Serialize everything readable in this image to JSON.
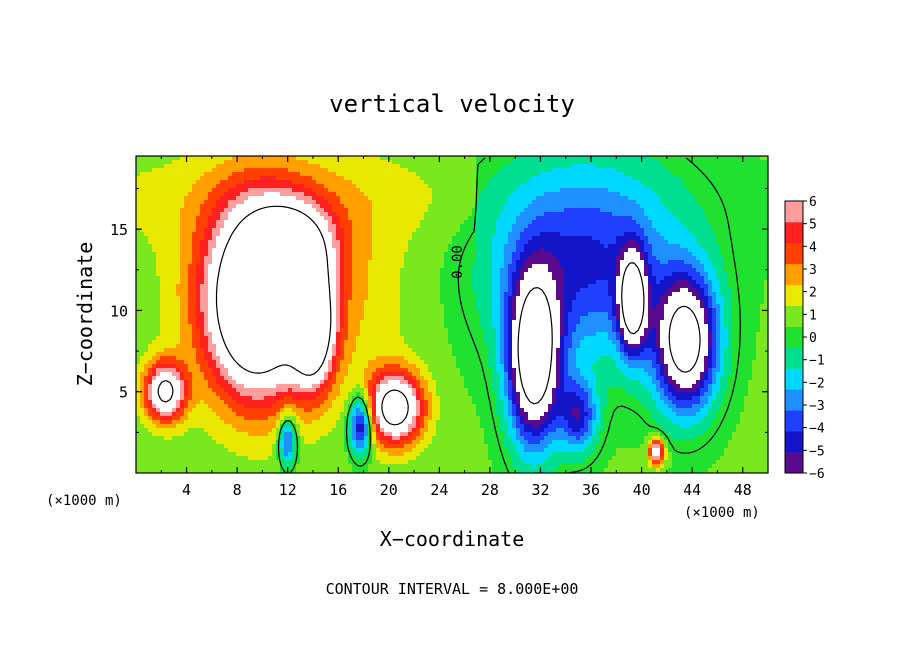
{
  "chart_data": {
    "type": "heatmap",
    "title": "vertical velocity",
    "xlabel": "X−coordinate",
    "ylabel": "Z−coordinate",
    "x_unit_left": "(×1000 m)",
    "x_unit_right": "(×1000 m)",
    "footer": "CONTOUR INTERVAL = 8.000E+00",
    "contour_label": "0.00",
    "xlim": [
      0,
      50
    ],
    "ylim": [
      0,
      19.5
    ],
    "x_ticks": [
      4,
      8,
      12,
      16,
      20,
      24,
      28,
      32,
      36,
      40,
      44,
      48
    ],
    "y_ticks": [
      5,
      10,
      15
    ],
    "colorbar": {
      "range": [
        -6,
        6
      ],
      "ticks": [
        "6",
        "5",
        "4",
        "3",
        "2",
        "1",
        "0",
        "−1",
        "−2",
        "−3",
        "−4",
        "−5",
        "−6"
      ],
      "colors": [
        "#5a0a8c",
        "#1414c8",
        "#2040ff",
        "#1e90ff",
        "#00d8ff",
        "#00e090",
        "#20e030",
        "#7ae81e",
        "#e8e800",
        "#ffa000",
        "#ff4000",
        "#ff2020",
        "#ff9c9c"
      ]
    },
    "features": [
      {
        "name": "updraft",
        "x": 9.5,
        "z": 10.5,
        "sx": 3.8,
        "sz": 5.5,
        "w": 11
      },
      {
        "name": "updraft",
        "x": 12.5,
        "z": 14.0,
        "sx": 3.0,
        "sz": 2.5,
        "w": 6
      },
      {
        "name": "updraft",
        "x": 14.0,
        "z": 9.0,
        "sx": 1.6,
        "sz": 3.5,
        "w": 9
      },
      {
        "name": "updraft",
        "x": 20.5,
        "z": 4.0,
        "sx": 2.2,
        "sz": 2.2,
        "w": 9
      },
      {
        "name": "updraft",
        "x": 2.3,
        "z": 5.0,
        "sx": 1.6,
        "sz": 1.8,
        "w": 8
      },
      {
        "name": "updraft",
        "x": 41.2,
        "z": 1.3,
        "sx": 0.6,
        "sz": 0.8,
        "w": 7
      },
      {
        "name": "downdraft",
        "x": 17.8,
        "z": 3.0,
        "sx": 0.9,
        "sz": 1.8,
        "w": -7
      },
      {
        "name": "downdraft",
        "x": 12.0,
        "z": 2.0,
        "sx": 0.7,
        "sz": 1.6,
        "w": -5
      },
      {
        "name": "downdraft",
        "x": 31.5,
        "z": 7.0,
        "sx": 2.0,
        "sz": 5.0,
        "w": -11
      },
      {
        "name": "downdraft",
        "x": 39.3,
        "z": 10.5,
        "sx": 1.1,
        "sz": 3.0,
        "w": -9
      },
      {
        "name": "downdraft",
        "x": 43.5,
        "z": 8.0,
        "sx": 2.4,
        "sz": 4.0,
        "w": -10
      },
      {
        "name": "downdraft",
        "x": 35.5,
        "z": 13.0,
        "sx": 7.5,
        "sz": 6.0,
        "w": -5
      },
      {
        "name": "downdraft",
        "x": 35.0,
        "z": 3.5,
        "sx": 1.5,
        "sz": 2.2,
        "w": -5
      },
      {
        "name": "updraft",
        "x": 12.0,
        "z": 11.5,
        "sx": 8.0,
        "sz": 7.0,
        "w": 3
      }
    ]
  }
}
